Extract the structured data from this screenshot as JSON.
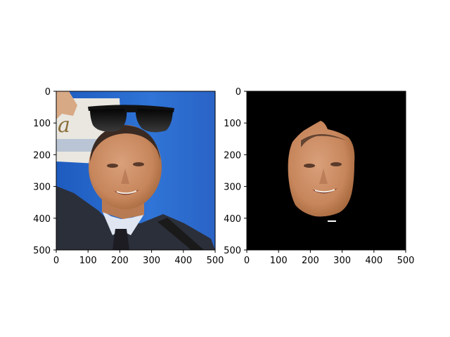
{
  "chart_data": [
    {
      "type": "image",
      "title": "",
      "xlabel": "",
      "ylabel": "",
      "xlim": [
        0,
        500
      ],
      "ylim": [
        500,
        0
      ],
      "xticks": [
        0,
        100,
        200,
        300,
        400,
        500
      ],
      "yticks": [
        0,
        100,
        200,
        300,
        400,
        500
      ],
      "content": "photo with sunglasses overlay",
      "colors": {
        "background_blue": "#2f6fd0",
        "suit": "#2b2f3a",
        "skin": "#c98a62",
        "sunglasses": "#111111"
      }
    },
    {
      "type": "image",
      "title": "",
      "xlabel": "",
      "ylabel": "",
      "xlim": [
        0,
        500
      ],
      "ylim": [
        500,
        0
      ],
      "xticks": [
        0,
        100,
        200,
        300,
        400,
        500
      ],
      "yticks": [
        0,
        100,
        200,
        300,
        400,
        500
      ],
      "content": "face segmentation mask on black",
      "colors": {
        "background": "#000000",
        "skin": "#c98a62"
      }
    }
  ]
}
